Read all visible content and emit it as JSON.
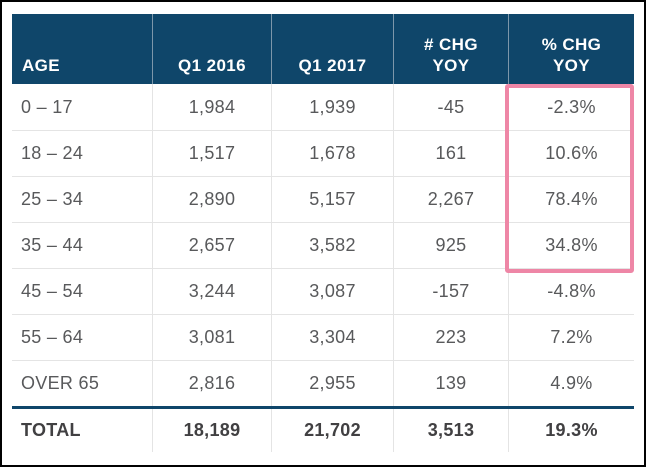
{
  "colors": {
    "navy": "#0f466a",
    "header-text": "#ffffff",
    "header-divider": "#7d97aa",
    "body-text": "#58595b",
    "total-text": "#414042",
    "grid-line": "#e4e4e4",
    "highlight-pink": "#ee86a6",
    "frame-black": "#010101",
    "background": "#ffffff"
  },
  "table": {
    "columns": [
      "AGE",
      "Q1 2016",
      "Q1 2017",
      "# CHG\nYOY",
      "% CHG\nYOY"
    ],
    "rows": [
      [
        "0 – 17",
        "1,984",
        "1,939",
        "-45",
        "-2.3%"
      ],
      [
        "18 – 24",
        "1,517",
        "1,678",
        "161",
        "10.6%"
      ],
      [
        "25 – 34",
        "2,890",
        "5,157",
        "2,267",
        "78.4%"
      ],
      [
        "35 – 44",
        "2,657",
        "3,582",
        "925",
        "34.8%"
      ],
      [
        "45 – 54",
        "3,244",
        "3,087",
        "-157",
        "-4.8%"
      ],
      [
        "55 – 64",
        "3,081",
        "3,304",
        "223",
        "7.2%"
      ],
      [
        "OVER 65",
        "2,816",
        "2,955",
        "139",
        "4.9%"
      ]
    ],
    "total": [
      "TOTAL",
      "18,189",
      "21,702",
      "3,513",
      "19.3%"
    ],
    "highlight": {
      "column": "% CHG YOY",
      "rows_covered": [
        "0 – 17",
        "18 – 24",
        "25 – 34",
        "35 – 44"
      ]
    }
  }
}
